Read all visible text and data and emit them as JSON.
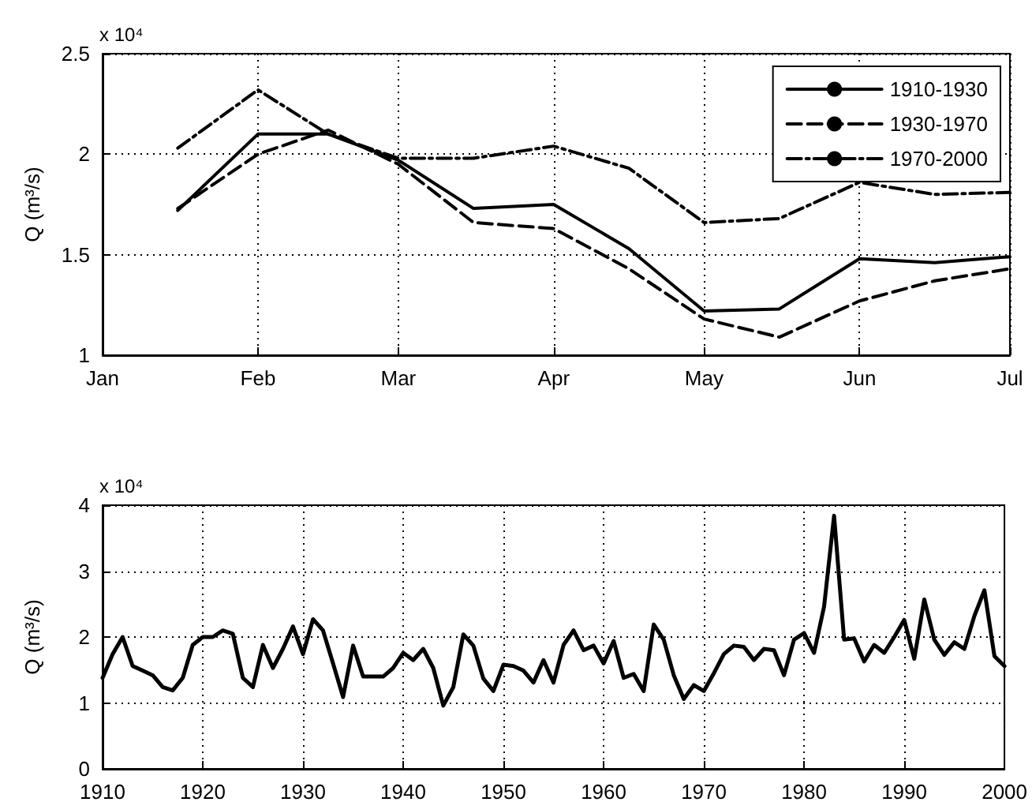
{
  "chart_data": [
    {
      "type": "line",
      "ylabel": "Q (m³/s)",
      "annotations": [
        "x 10⁴"
      ],
      "x": [
        "--01-16",
        "--02-01",
        "--02-15",
        "--03-01",
        "--03-16",
        "--04-01",
        "--04-16",
        "--05-01",
        "--05-16",
        "--06-01",
        "--06-16",
        "--07-01"
      ],
      "series": [
        {
          "name": "1910-1930",
          "color": "#000000",
          "line_style": "solid",
          "values": [
            1.72,
            2.1,
            2.1,
            1.97,
            1.73,
            1.75,
            1.53,
            1.22,
            1.23,
            1.48,
            1.46,
            1.49
          ]
        },
        {
          "name": "1930-1970",
          "color": "#000000",
          "line_style": "dashed",
          "values": [
            1.73,
            2.0,
            2.12,
            1.95,
            1.66,
            1.63,
            1.43,
            1.18,
            1.09,
            1.27,
            1.37,
            1.43
          ]
        },
        {
          "name": "1970-2000",
          "color": "#000000",
          "line_style": "dashdot",
          "values": [
            2.03,
            2.32,
            2.1,
            1.98,
            1.98,
            2.04,
            1.93,
            1.66,
            1.68,
            1.86,
            1.8,
            1.81
          ]
        }
      ],
      "xlim": [
        "--01-01",
        "--07-01"
      ],
      "xticks": [
        {
          "value": "--01-01",
          "label": "Jan"
        },
        {
          "value": "--02-01",
          "label": "Feb"
        },
        {
          "value": "--03-01",
          "label": "Mar"
        },
        {
          "value": "--04-01",
          "label": "Apr"
        },
        {
          "value": "--05-01",
          "label": "May"
        },
        {
          "value": "--06-01",
          "label": "Jun"
        },
        {
          "value": "--07-01",
          "label": "Jul"
        }
      ],
      "ylim": [
        1,
        2.5
      ],
      "yticks": [
        1,
        1.5,
        2,
        2.5
      ],
      "grid": true,
      "legend": "top right",
      "marker": "none"
    },
    {
      "type": "line",
      "ylabel": "Q (m³/s)",
      "annotations": [
        "x 10⁴"
      ],
      "x": [
        1910,
        1911,
        1912,
        1913,
        1914,
        1915,
        1916,
        1917,
        1918,
        1919,
        1920,
        1921,
        1922,
        1923,
        1924,
        1925,
        1926,
        1927,
        1928,
        1929,
        1930,
        1931,
        1932,
        1933,
        1934,
        1935,
        1936,
        1937,
        1938,
        1939,
        1940,
        1941,
        1942,
        1943,
        1944,
        1945,
        1946,
        1947,
        1948,
        1949,
        1950,
        1951,
        1952,
        1953,
        1954,
        1955,
        1956,
        1957,
        1958,
        1959,
        1960,
        1961,
        1962,
        1963,
        1964,
        1965,
        1966,
        1967,
        1968,
        1969,
        1970,
        1971,
        1972,
        1973,
        1974,
        1975,
        1976,
        1977,
        1978,
        1979,
        1980,
        1981,
        1982,
        1983,
        1984,
        1985,
        1986,
        1987,
        1988,
        1989,
        1990,
        1991,
        1992,
        1993,
        1994,
        1995,
        1996,
        1997,
        1998,
        1999,
        2000
      ],
      "series": [
        {
          "color": "#000000",
          "values": [
            1.38,
            1.74,
            2.0,
            1.56,
            1.49,
            1.42,
            1.24,
            1.19,
            1.38,
            1.88,
            2.0,
            2.0,
            2.1,
            2.05,
            1.38,
            1.24,
            1.88,
            1.53,
            1.82,
            2.16,
            1.74,
            2.27,
            2.1,
            1.6,
            1.09,
            1.87,
            1.4,
            1.4,
            1.4,
            1.53,
            1.76,
            1.65,
            1.82,
            1.53,
            0.96,
            1.24,
            2.04,
            1.87,
            1.37,
            1.18,
            1.58,
            1.56,
            1.49,
            1.31,
            1.65,
            1.31,
            1.88,
            2.1,
            1.8,
            1.87,
            1.6,
            1.94,
            1.38,
            1.44,
            1.18,
            2.19,
            1.96,
            1.42,
            1.06,
            1.27,
            1.18,
            1.45,
            1.74,
            1.87,
            1.85,
            1.65,
            1.82,
            1.8,
            1.42,
            1.96,
            2.06,
            1.76,
            2.46,
            3.84,
            1.96,
            1.98,
            1.63,
            1.88,
            1.76,
            2.0,
            2.26,
            1.67,
            2.57,
            1.96,
            1.73,
            1.92,
            1.82,
            2.32,
            2.71,
            1.71,
            1.56
          ]
        }
      ],
      "xlim": [
        1910,
        2000
      ],
      "xticks": [
        1910,
        1920,
        1930,
        1940,
        1950,
        1960,
        1970,
        1980,
        1990,
        2000
      ],
      "ylim": [
        0,
        4
      ],
      "yticks": [
        0,
        1,
        2,
        3,
        4
      ],
      "grid": true,
      "marker": "none",
      "line_style": "solid"
    }
  ]
}
